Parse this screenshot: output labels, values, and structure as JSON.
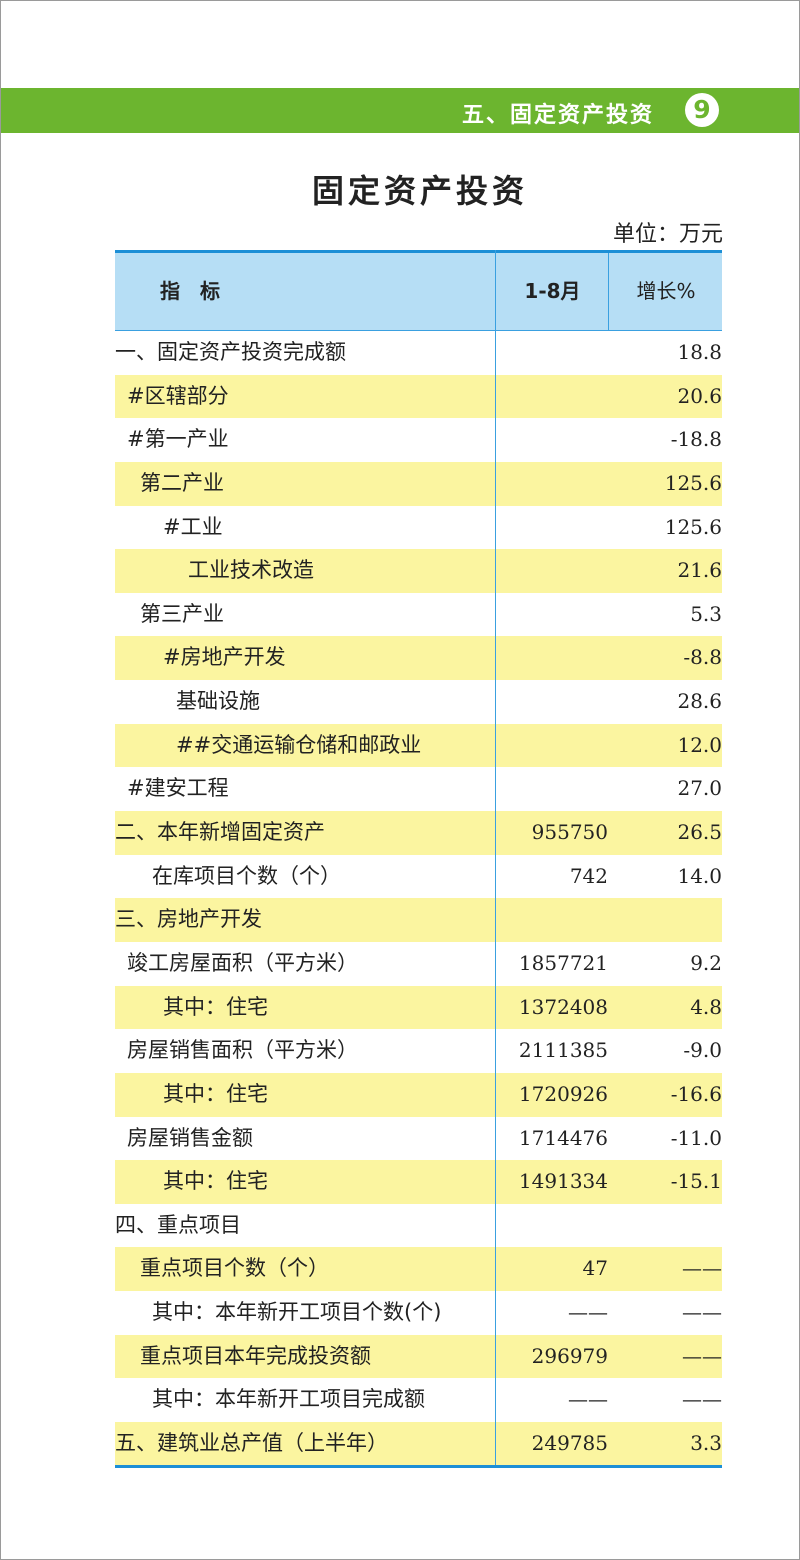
{
  "header": {
    "section": "五、固定资产投资",
    "page_number": "9",
    "accent_color": "#6cb52f"
  },
  "title": "固定资产投资",
  "unit": "单位：万元",
  "table": {
    "columns": [
      "指标",
      "1-8月",
      "增长%"
    ],
    "rows": [
      {
        "label": "一、固定资产投资完成额",
        "indent": 0,
        "value": "",
        "growth": "18.8"
      },
      {
        "label": "#区辖部分",
        "indent": 1,
        "value": "",
        "growth": "20.6"
      },
      {
        "label": "#第一产业",
        "indent": 1,
        "value": "",
        "growth": "-18.8"
      },
      {
        "label": "第二产业",
        "indent": 2,
        "value": "",
        "growth": "125.6"
      },
      {
        "label": "#工业",
        "indent": 4,
        "value": "",
        "growth": "125.6"
      },
      {
        "label": "工业技术改造",
        "indent": 6,
        "value": "",
        "growth": "21.6"
      },
      {
        "label": "第三产业",
        "indent": 2,
        "value": "",
        "growth": "5.3"
      },
      {
        "label": "#房地产开发",
        "indent": 4,
        "value": "",
        "growth": "-8.8"
      },
      {
        "label": "基础设施",
        "indent": 5,
        "value": "",
        "growth": "28.6"
      },
      {
        "label": "##交通运输仓储和邮政业",
        "indent": 5,
        "value": "",
        "growth": "12.0"
      },
      {
        "label": "#建安工程",
        "indent": 1,
        "value": "",
        "growth": "27.0"
      },
      {
        "label": "二、本年新增固定资产",
        "indent": 0,
        "value": "955750",
        "growth": "26.5"
      },
      {
        "label": "在库项目个数（个）",
        "indent": 3,
        "value": "742",
        "growth": "14.0"
      },
      {
        "label": "三、房地产开发",
        "indent": 0,
        "value": "",
        "growth": ""
      },
      {
        "label": "竣工房屋面积（平方米）",
        "indent": 1,
        "value": "1857721",
        "growth": "9.2"
      },
      {
        "label": "其中：住宅",
        "indent": 4,
        "value": "1372408",
        "growth": "4.8"
      },
      {
        "label": "房屋销售面积（平方米）",
        "indent": 1,
        "value": "2111385",
        "growth": "-9.0"
      },
      {
        "label": "其中：住宅",
        "indent": 4,
        "value": "1720926",
        "growth": "-16.6"
      },
      {
        "label": "房屋销售金额",
        "indent": 1,
        "value": "1714476",
        "growth": "-11.0"
      },
      {
        "label": "其中：住宅",
        "indent": 4,
        "value": "1491334",
        "growth": "-15.1"
      },
      {
        "label": "四、重点项目",
        "indent": 0,
        "value": "",
        "growth": ""
      },
      {
        "label": "重点项目个数（个）",
        "indent": 2,
        "value": "47",
        "growth": "——"
      },
      {
        "label": "其中：本年新开工项目个数(个)",
        "indent": 3,
        "value": "——",
        "growth": "——"
      },
      {
        "label": "重点项目本年完成投资额",
        "indent": 2,
        "value": "296979",
        "growth": "——"
      },
      {
        "label": "其中：本年新开工项目完成额",
        "indent": 3,
        "value": "——",
        "growth": "——"
      },
      {
        "label": "五、建筑业总产值（上半年）",
        "indent": 0,
        "value": "249785",
        "growth": "3.3"
      }
    ]
  }
}
